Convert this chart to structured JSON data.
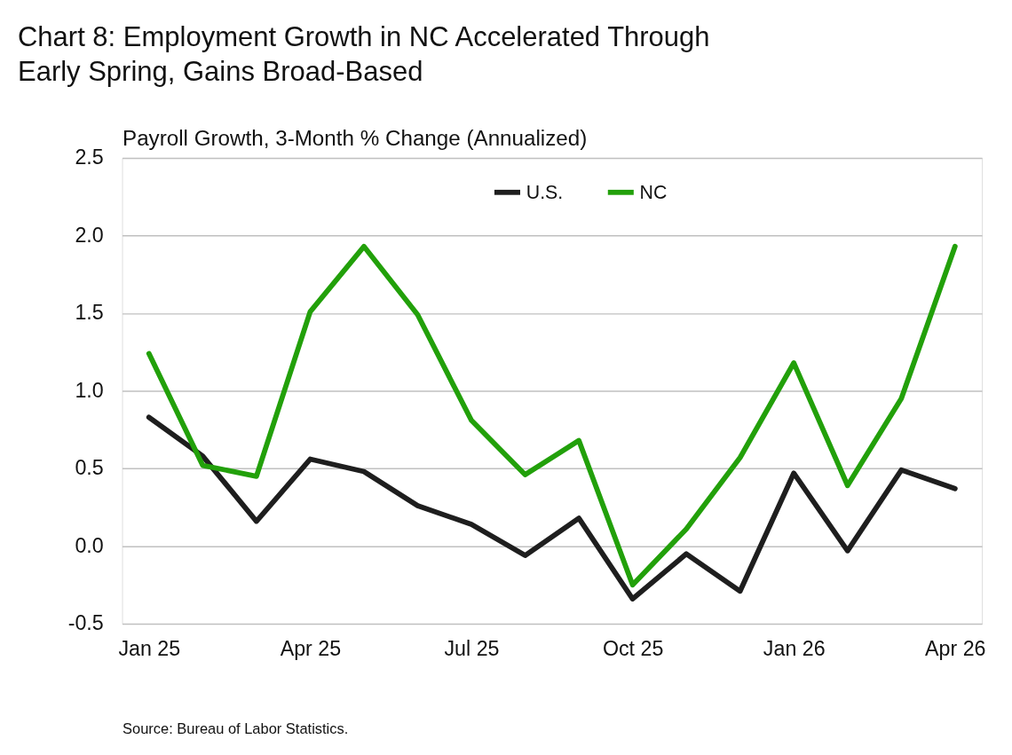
{
  "chart_data": {
    "type": "line",
    "title": [
      "Chart 8: Employment Growth in NC Accelerated Through",
      "Early Spring, Gains Broad-Based"
    ],
    "ylabel": "Payroll Growth, 3-Month % Change (Annualized)",
    "categories": [
      "Jan 25",
      null,
      null,
      "Apr 25",
      null,
      null,
      "Jul 25",
      null,
      null,
      "Oct 25",
      null,
      null,
      "Jan 26",
      null,
      null,
      "Apr 26"
    ],
    "series": [
      {
        "name": "U.S.",
        "color": "#1e1e1e",
        "values": [
          0.83,
          0.58,
          0.16,
          0.56,
          0.48,
          0.26,
          0.14,
          -0.06,
          0.18,
          -0.34,
          -0.05,
          -0.29,
          0.47,
          -0.03,
          0.49,
          0.37
        ]
      },
      {
        "name": "NC",
        "color": "#22a00a",
        "values": [
          1.24,
          0.52,
          0.45,
          1.51,
          1.93,
          1.49,
          0.81,
          0.46,
          0.68,
          -0.25,
          0.11,
          0.57,
          1.18,
          0.39,
          0.95,
          1.93
        ]
      }
    ],
    "ylim": [
      -0.5,
      2.5
    ],
    "yticks": [
      {
        "value": -0.5,
        "label": "-0.5"
      },
      {
        "value": 0,
        "label": "0.0"
      },
      {
        "value": 0.5,
        "label": "0.5"
      },
      {
        "value": 1,
        "label": "1.0"
      },
      {
        "value": 1.5,
        "label": "1.5"
      },
      {
        "value": 2,
        "label": "2.0"
      },
      {
        "value": 2.5,
        "label": "2.5"
      }
    ],
    "grid": "y",
    "legend": "top right",
    "line_style": "solid",
    "marker": "none",
    "annotations": [
      "Source: Bureau of Labor Statistics."
    ]
  }
}
